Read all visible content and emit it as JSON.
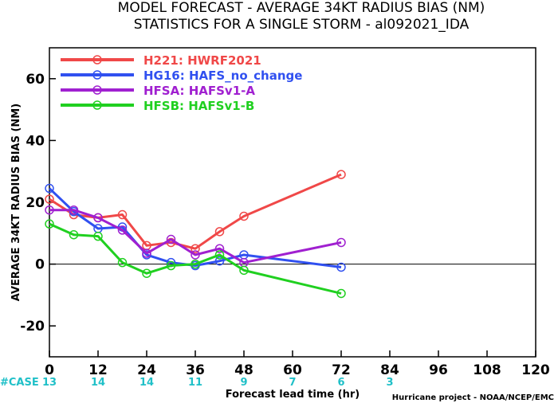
{
  "chart_data": {
    "type": "line",
    "title_line1": "MODEL FORECAST - AVERAGE 34KT RADIUS BIAS (NM)",
    "title_line2": "STATISTICS FOR A SINGLE STORM - al092021_IDA",
    "xlabel": "Forecast lead time (hr)",
    "ylabel": "AVERAGE 34KT RADIUS BIAS (NM)",
    "xlim": [
      0,
      120
    ],
    "ylim": [
      -30,
      70
    ],
    "xticks": [
      0,
      12,
      24,
      36,
      48,
      60,
      72,
      84,
      96,
      108,
      120
    ],
    "yticks": [
      -20,
      0,
      20,
      40,
      60
    ],
    "grid": false,
    "zero_line": true,
    "legend_position": "top-left",
    "series": [
      {
        "name": "H221: HWRF2021",
        "color": "#f04848",
        "x": [
          0,
          6,
          12,
          18,
          24,
          30,
          36,
          42,
          48,
          72
        ],
        "y": [
          21,
          16,
          15,
          16,
          6,
          7,
          5,
          10.5,
          15.5,
          29
        ]
      },
      {
        "name": "HG16: HAFS_no_change",
        "color": "#3050f0",
        "x": [
          0,
          6,
          12,
          18,
          24,
          30,
          36,
          42,
          48,
          72
        ],
        "y": [
          24.5,
          17,
          11.5,
          12,
          3,
          0.5,
          -0.5,
          1,
          3,
          -1
        ]
      },
      {
        "name": "HFSA: HAFSv1-A",
        "color": "#a020d0",
        "x": [
          0,
          6,
          12,
          18,
          24,
          30,
          36,
          42,
          48,
          72
        ],
        "y": [
          17.5,
          17.5,
          15,
          11,
          3.5,
          8,
          3,
          5,
          0.5,
          7
        ]
      },
      {
        "name": "HFSB: HAFSv1-B",
        "color": "#20d020",
        "x": [
          0,
          6,
          12,
          18,
          24,
          30,
          36,
          42,
          48,
          72
        ],
        "y": [
          13,
          9.5,
          9,
          0.5,
          -3,
          -0.5,
          0,
          3,
          -2,
          -9.5
        ]
      }
    ],
    "case_counts": {
      "label": "#CASE",
      "color": "#20c0c8",
      "x": [
        0,
        12,
        24,
        36,
        48,
        60,
        72,
        84
      ],
      "values": [
        "13",
        "14",
        "14",
        "11",
        "9",
        "7",
        "6",
        "3"
      ]
    },
    "credit": "Hurricane project - NOAA/NCEP/EMC"
  }
}
